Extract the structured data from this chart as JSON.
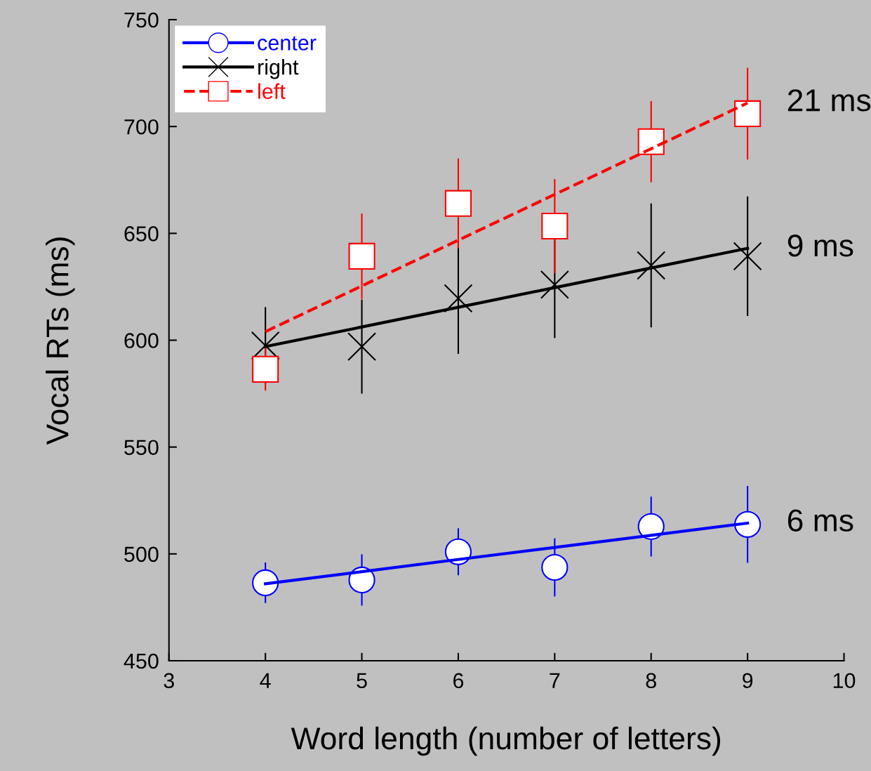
{
  "chart_data": {
    "type": "scatter",
    "xlabel": "Word length (number of letters)",
    "ylabel": "Vocal RTs (ms)",
    "xlim": [
      3,
      10
    ],
    "xticks": [
      3,
      4,
      5,
      6,
      7,
      8,
      9,
      10
    ],
    "ylim": [
      450,
      750
    ],
    "yticks": [
      450,
      500,
      550,
      600,
      650,
      700,
      750
    ],
    "x": [
      4,
      5,
      6,
      7,
      8,
      9
    ],
    "grid": false,
    "legend": "top left",
    "series": [
      {
        "name": "center",
        "color": "#0000ff",
        "marker": "circle",
        "line_style": "solid",
        "values": [
          486.5,
          487.8,
          501,
          493.7,
          512.8,
          513.8
        ],
        "errors": [
          9.5,
          12,
          11,
          13.6,
          14,
          18
        ]
      },
      {
        "name": "right",
        "color": "#000000",
        "marker": "cross",
        "line_style": "solid",
        "values": [
          597.5,
          597,
          619.6,
          626,
          635,
          639.3
        ],
        "errors": [
          18,
          22,
          26,
          25,
          29,
          28
        ]
      },
      {
        "name": "left",
        "color": "#ff0000",
        "marker": "square",
        "line_style": "dashed",
        "values": [
          586.4,
          639.3,
          664,
          653.4,
          692.9,
          706
        ],
        "errors": [
          10,
          20,
          21,
          22,
          19,
          21.5
        ]
      },
      {
        "type": "line",
        "color": "#0000ff",
        "line_style": "solid",
        "x": [
          4,
          5,
          6,
          7,
          8,
          9
        ],
        "values": [
          486,
          491.7,
          497.4,
          503,
          508.7,
          514.4
        ]
      },
      {
        "type": "line",
        "color": "#000000",
        "line_style": "solid",
        "x": [
          4,
          5,
          6,
          7,
          8,
          9
        ],
        "values": [
          597,
          606.2,
          615.4,
          624.6,
          633.8,
          643
        ]
      },
      {
        "type": "line",
        "color": "#ff0000",
        "line_style": "dashed",
        "x": [
          4,
          5,
          6,
          7,
          8,
          9
        ],
        "values": [
          604,
          625.4,
          646.8,
          668.2,
          689.6,
          711
        ]
      }
    ],
    "annotations": [
      "21 ms",
      "9 ms",
      "6 ms"
    ]
  }
}
